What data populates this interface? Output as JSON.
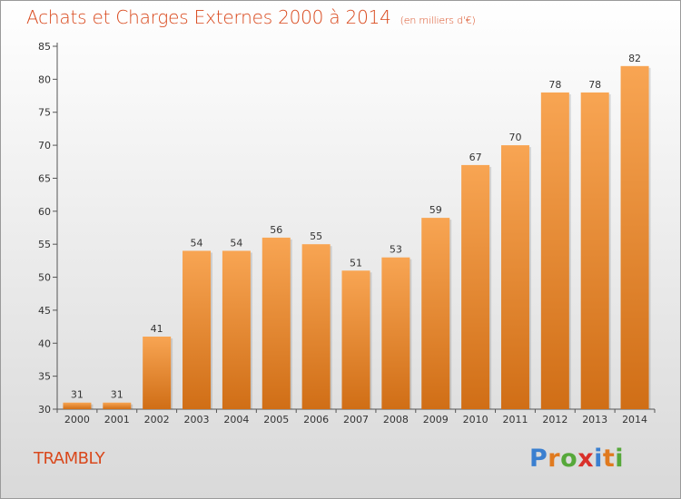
{
  "header": {
    "title": "Achats et Charges Externes 2000 à 2014",
    "subtitle": "(en milliers d'€)"
  },
  "footer": {
    "city": "TRAMBLY",
    "logo": {
      "text": "Proxiti",
      "letters": [
        {
          "char": "P",
          "color": "#3a7fd0"
        },
        {
          "char": "r",
          "color": "#e07a1f"
        },
        {
          "char": "o",
          "color": "#56a83a"
        },
        {
          "char": "x",
          "color": "#d9302a"
        },
        {
          "char": "i",
          "color": "#3a7fd0"
        },
        {
          "char": "t",
          "color": "#e07a1f"
        },
        {
          "char": "i",
          "color": "#56a83a"
        }
      ]
    }
  },
  "colors": {
    "title": "#d9481c",
    "bar_top": "#f8a553",
    "bar_bottom": "#d06e16",
    "axis": "#555555"
  },
  "chart_data": {
    "type": "bar",
    "title": "Achats et Charges Externes 2000 à 2014",
    "subtitle": "(en milliers d'€)",
    "xlabel": "",
    "ylabel": "",
    "categories": [
      "2000",
      "2001",
      "2002",
      "2003",
      "2004",
      "2005",
      "2006",
      "2007",
      "2008",
      "2009",
      "2010",
      "2011",
      "2012",
      "2013",
      "2014"
    ],
    "values": [
      31,
      31,
      41,
      54,
      54,
      56,
      55,
      51,
      53,
      59,
      67,
      70,
      78,
      78,
      82
    ],
    "ylim": [
      30,
      85
    ],
    "yticks": [
      30,
      35,
      40,
      45,
      50,
      55,
      60,
      65,
      70,
      75,
      80,
      85
    ],
    "grid": false,
    "data_labels": true
  }
}
